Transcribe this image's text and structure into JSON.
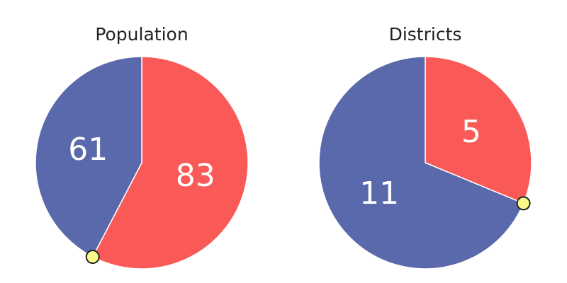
{
  "chart_data": [
    {
      "type": "pie",
      "title": "Population",
      "slices": [
        {
          "value": 83,
          "label": "83",
          "color": "#f95a57"
        },
        {
          "value": 61,
          "label": "61",
          "color": "#5a69ab"
        }
      ],
      "marker": {
        "color": "#fafb88",
        "stroke": "#222222"
      }
    },
    {
      "type": "pie",
      "title": "Districts",
      "slices": [
        {
          "value": 5,
          "label": "5",
          "color": "#f95a57"
        },
        {
          "value": 11,
          "label": "11",
          "color": "#5a69ab"
        }
      ],
      "marker": {
        "color": "#fafb88",
        "stroke": "#222222"
      }
    }
  ]
}
